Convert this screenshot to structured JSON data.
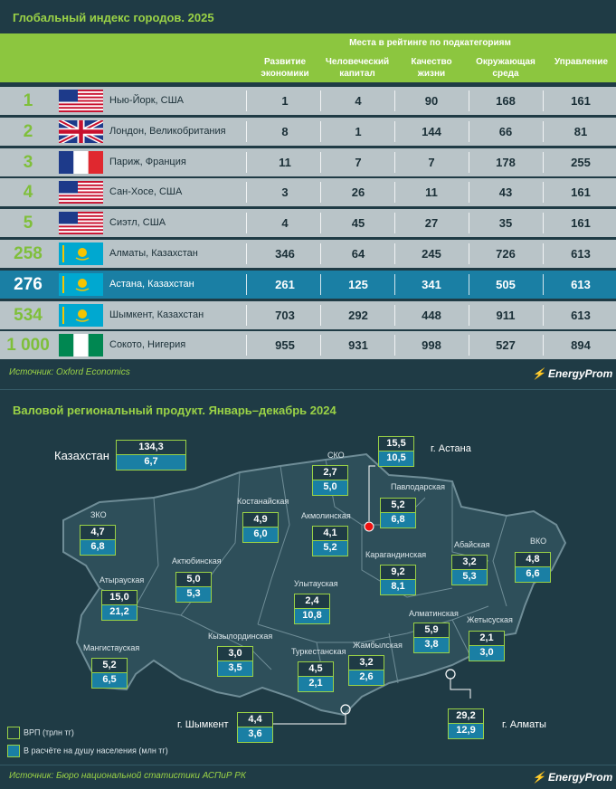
{
  "chart_data": [
    {
      "type": "table",
      "title": "Глобальный индекс городов. 2025",
      "group_header": "Места в рейтинге по подкатегориям",
      "columns": [
        "Развитие экономики",
        "Человеческий капитал",
        "Качество жизни",
        "Окружающая среда",
        "Управление"
      ],
      "rows": [
        {
          "rank": "1",
          "city": "Нью-Йорк, США",
          "flag": "us",
          "values": [
            "1",
            "4",
            "90",
            "168",
            "161"
          ]
        },
        {
          "rank": "2",
          "city": "Лондон, Великобритания",
          "flag": "gb",
          "values": [
            "8",
            "1",
            "144",
            "66",
            "81"
          ]
        },
        {
          "rank": "3",
          "city": "Париж, Франция",
          "flag": "fr",
          "values": [
            "11",
            "7",
            "7",
            "178",
            "255"
          ]
        },
        {
          "rank": "4",
          "city": "Сан-Хосе, США",
          "flag": "us",
          "values": [
            "3",
            "26",
            "11",
            "43",
            "161"
          ]
        },
        {
          "rank": "5",
          "city": "Сиэтл, США",
          "flag": "us",
          "values": [
            "4",
            "45",
            "27",
            "35",
            "161"
          ]
        },
        {
          "rank": "258",
          "city": "Алматы, Казахстан",
          "flag": "kz",
          "values": [
            "346",
            "64",
            "245",
            "726",
            "613"
          ]
        },
        {
          "rank": "276",
          "city": "Астана, Казахстан",
          "flag": "kz",
          "values": [
            "261",
            "125",
            "341",
            "505",
            "613"
          ],
          "highlight": true
        },
        {
          "rank": "534",
          "city": "Шымкент, Казахстан",
          "flag": "kz",
          "values": [
            "703",
            "292",
            "448",
            "911",
            "613"
          ]
        },
        {
          "rank": "1 000",
          "city": "Сокото, Нигерия",
          "flag": "ng",
          "values": [
            "955",
            "931",
            "998",
            "527",
            "894"
          ]
        }
      ],
      "source": "Источник: Oxford Economics"
    },
    {
      "type": "table",
      "title": "Валовой региональный продукт. Январь–декабрь 2024",
      "legend": [
        "ВРП (трлн тг)",
        "В расчёте на душу населения (млн тг)"
      ],
      "total": {
        "label": "Казахстан",
        "grp": "134,3",
        "per_capita": "6,7"
      },
      "regions": [
        {
          "name": "г. Астана",
          "grp": "15,5",
          "per_capita": "10,5"
        },
        {
          "name": "СКО",
          "grp": "2,7",
          "per_capita": "5,0"
        },
        {
          "name": "Павлодарская",
          "grp": "5,2",
          "per_capita": "6,8"
        },
        {
          "name": "Костанайская",
          "grp": "4,9",
          "per_capita": "6,0"
        },
        {
          "name": "Акмолинская",
          "grp": "4,1",
          "per_capita": "5,2"
        },
        {
          "name": "ЗКО",
          "grp": "4,7",
          "per_capita": "6,8"
        },
        {
          "name": "ВКО",
          "grp": "4,8",
          "per_capita": "6,6"
        },
        {
          "name": "Абайская",
          "grp": "3,2",
          "per_capita": "5,3"
        },
        {
          "name": "Актюбинская",
          "grp": "5,0",
          "per_capita": "5,3"
        },
        {
          "name": "Карагандинская",
          "grp": "9,2",
          "per_capita": "8,1"
        },
        {
          "name": "Атырауская",
          "grp": "15,0",
          "per_capita": "21,2"
        },
        {
          "name": "Улытауская",
          "grp": "2,4",
          "per_capita": "10,8"
        },
        {
          "name": "Алматинская",
          "grp": "5,9",
          "per_capita": "3,8"
        },
        {
          "name": "Жетысуская",
          "grp": "2,1",
          "per_capita": "3,0"
        },
        {
          "name": "Мангистауская",
          "grp": "5,2",
          "per_capita": "6,5"
        },
        {
          "name": "Кызылординская",
          "grp": "3,0",
          "per_capita": "3,5"
        },
        {
          "name": "Туркестанская",
          "grp": "4,5",
          "per_capita": "2,1"
        },
        {
          "name": "Жамбылская",
          "grp": "3,2",
          "per_capita": "2,6"
        },
        {
          "name": "г. Шымкент",
          "grp": "4,4",
          "per_capita": "3,6"
        },
        {
          "name": "г. Алматы",
          "grp": "29,2",
          "per_capita": "12,9"
        }
      ],
      "source": "Источник: Бюро национальной статистики АСПиР РК"
    }
  ],
  "brand": "EnergyProm",
  "colors": {
    "bg": "#1f3b45",
    "accent": "#8cc63f",
    "row": "#b9c4c8",
    "highlight": "#1a7fa4"
  }
}
